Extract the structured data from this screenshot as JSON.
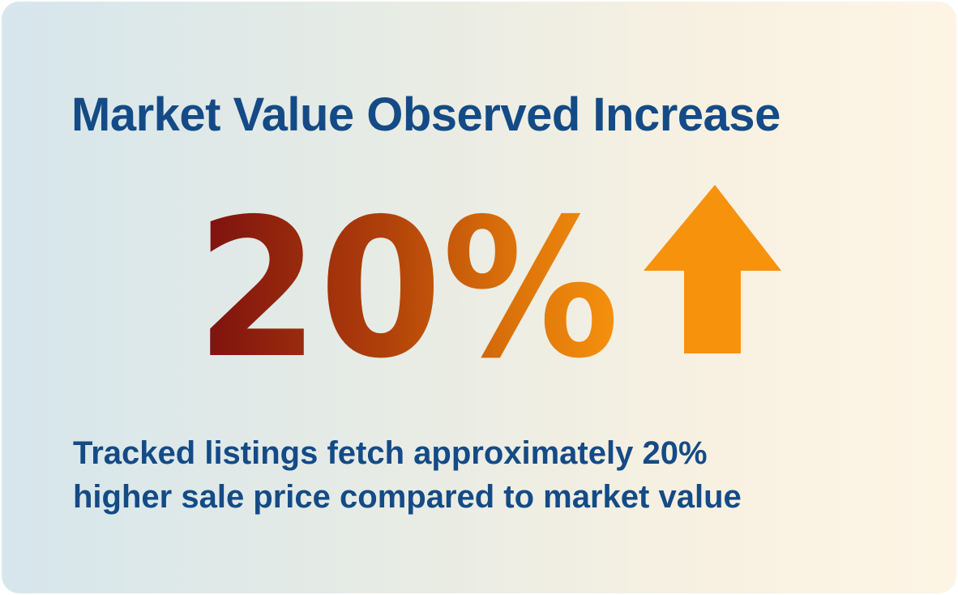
{
  "card": {
    "title": "Market Value Observed Increase",
    "stat": {
      "value_text": "20%",
      "trend": "up",
      "trend_icon": "arrow-up-icon"
    },
    "caption_lines": [
      "Tracked listings fetch approximately 20%",
      "higher sale price compared to market value"
    ]
  },
  "colors": {
    "heading": "#144b86",
    "stat_gradient_start": "#7a0e10",
    "stat_gradient_mid": "#c45a08",
    "stat_gradient_end": "#f7920d",
    "arrow": "#f7920d"
  }
}
